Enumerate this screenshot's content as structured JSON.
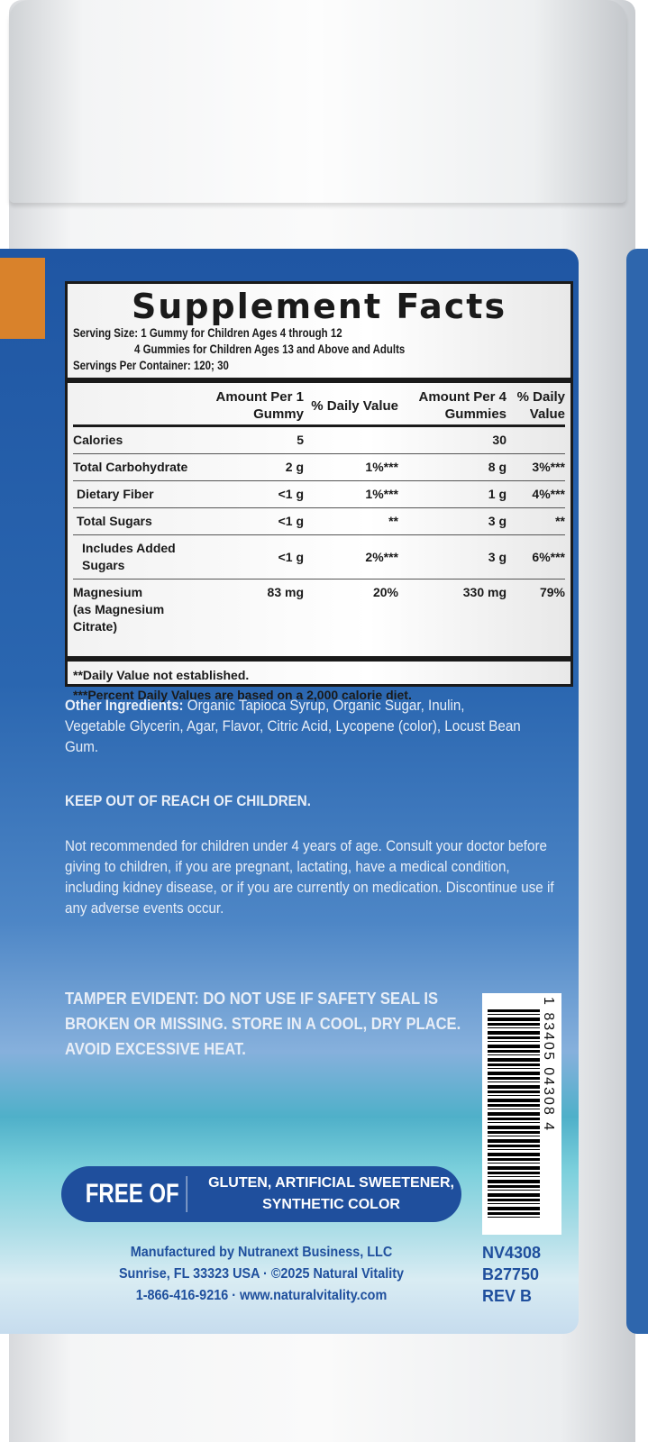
{
  "facts": {
    "title": "Supplement Facts",
    "serving_size_1": "Serving Size: 1 Gummy for Children Ages 4 through 12",
    "serving_size_2": "4 Gummies for Children Ages 13 and Above and Adults",
    "servings_per_container": "Servings Per Container: 120; 30",
    "headers": [
      "",
      "Amount Per 1 Gummy",
      "% Daily Value",
      "Amount Per 4 Gummies",
      "% Daily Value"
    ],
    "rows": [
      [
        "Calories",
        "5",
        "",
        "30",
        ""
      ],
      [
        "Total Carbohydrate",
        "2 g",
        "1%***",
        "8 g",
        "3%***"
      ],
      [
        "Dietary Fiber",
        "<1 g",
        "1%***",
        "1 g",
        "4%***"
      ],
      [
        "Total Sugars",
        "<1 g",
        "**",
        "3 g",
        "**"
      ],
      [
        "Includes Added Sugars",
        "<1 g",
        "2%***",
        "3 g",
        "6%***"
      ],
      [
        "Magnesium",
        "83 mg",
        "20%",
        "330 mg",
        "79%"
      ]
    ],
    "magnesium_sub": "(as Magnesium Citrate)",
    "note_1": "**Daily Value not established.",
    "note_2": "***Percent Daily Values are based on a 2,000 calorie diet."
  },
  "other_ingredients_label": "Other Ingredients:",
  "other_ingredients": "Organic Tapioca Syrup, Organic Sugar, Inulin, Vegetable Glycerin, Agar, Flavor, Citric Acid, Lycopene (color), Locust Bean Gum.",
  "keep_out": "KEEP OUT OF REACH OF CHILDREN.",
  "warning": "Not recommended for children under 4 years of age. Consult your doctor before giving to children, if you are pregnant, lactating, have a medical condition, including kidney disease, or if you are currently on medication. Discontinue use if any adverse events occur.",
  "tamper": "TAMPER EVIDENT: DO NOT USE IF SAFETY SEAL IS BROKEN OR MISSING. STORE IN A COOL, DRY PLACE. AVOID EXCESSIVE HEAT.",
  "free_of": {
    "label": "FREE OF",
    "items": "GLUTEN, ARTIFICIAL SWEETENER, SYNTHETIC COLOR"
  },
  "barcode": "1 83405 04308 4",
  "footer": {
    "line1": "Manufactured by Nutranext Business, LLC",
    "line2": "Sunrise, FL 33323 USA · ©2025 Natural Vitality",
    "line3": "1-866-416-9216 · www.naturalvitality.com"
  },
  "codes": [
    "NV4308",
    "B27750",
    "REV B"
  ]
}
